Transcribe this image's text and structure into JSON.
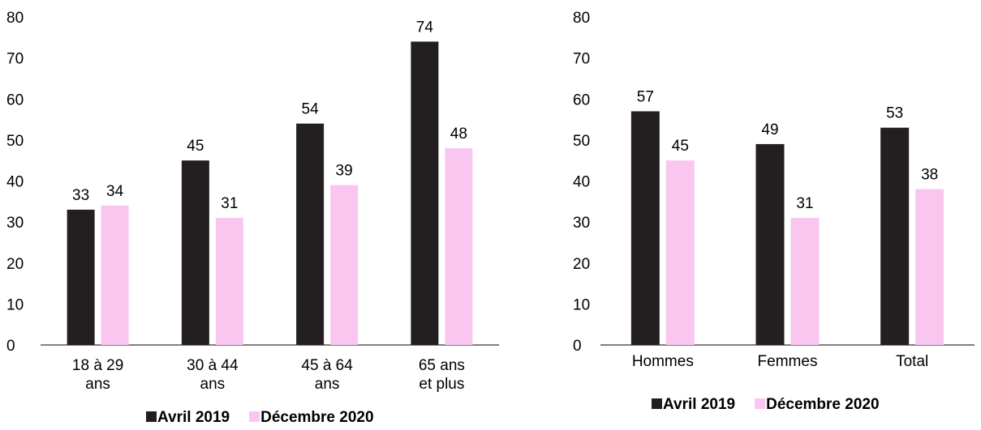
{
  "colors": {
    "series1": "#231f20",
    "series2": "#f9c6ef"
  },
  "chart_data": [
    {
      "type": "bar",
      "categories": [
        [
          "18 à 29",
          "ans"
        ],
        [
          "30 à 44",
          "ans"
        ],
        [
          "45 à 64",
          "ans"
        ],
        [
          "65 ans",
          "et plus"
        ]
      ],
      "series": [
        {
          "name": "Avril 2019",
          "values": [
            33,
            45,
            54,
            74
          ]
        },
        {
          "name": "Décembre 2020",
          "values": [
            34,
            31,
            39,
            48
          ]
        }
      ],
      "yticks": [
        0,
        10,
        20,
        30,
        40,
        50,
        60,
        70,
        80
      ],
      "ylim": [
        0,
        80
      ],
      "legend": "bottom"
    },
    {
      "type": "bar",
      "categories": [
        [
          "Hommes"
        ],
        [
          "Femmes"
        ],
        [
          "Total"
        ]
      ],
      "series": [
        {
          "name": "Avril 2019",
          "values": [
            57,
            49,
            53
          ]
        },
        {
          "name": "Décembre 2020",
          "values": [
            45,
            31,
            38
          ]
        }
      ],
      "yticks": [
        0,
        10,
        20,
        30,
        40,
        50,
        60,
        70,
        80
      ],
      "ylim": [
        0,
        80
      ],
      "legend": "bottom"
    }
  ]
}
